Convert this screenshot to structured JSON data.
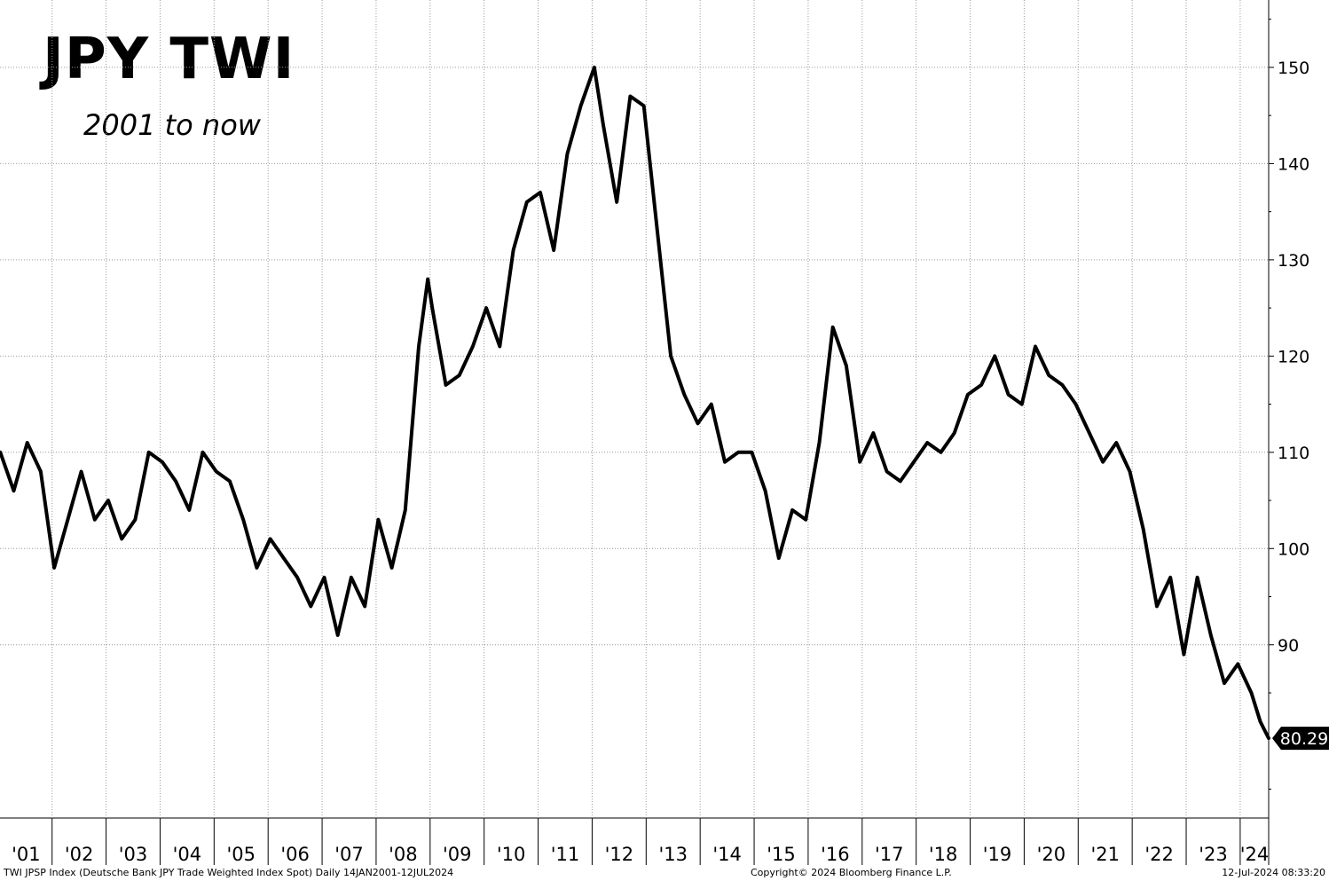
{
  "title": "JPY TWI",
  "subtitle": "2001 to now",
  "footer": {
    "source": "TWI JPSP Index (Deutsche Bank JPY Trade Weighted Index Spot)  Daily 14JAN2001-12JUL2024",
    "copyright": "Copyright© 2024 Bloomberg Finance L.P.",
    "timestamp": "12-Jul-2024 08:33:20"
  },
  "chart_data": {
    "type": "line",
    "title": "JPY TWI",
    "subtitle": "2001 to now",
    "frequency": "Daily",
    "date_range": "14JAN2001-12JUL2024",
    "ylim": [
      72,
      157
    ],
    "y_ticks": [
      90,
      100,
      110,
      120,
      130,
      140,
      150
    ],
    "y_tick_labels": [
      "90",
      "100",
      "110",
      "120",
      "130",
      "140",
      "150"
    ],
    "y_axis_position": "right",
    "x_tick_labels": [
      "'01",
      "'02",
      "'03",
      "'04",
      "'05",
      "'06",
      "'07",
      "'08",
      "'09",
      "'10",
      "'11",
      "'12",
      "'13",
      "'14",
      "'15",
      "'16",
      "'17",
      "'18",
      "'19",
      "'20",
      "'21",
      "'22",
      "'23",
      "'24"
    ],
    "grid": true,
    "last_value": 80.29,
    "last_value_label": "80.29",
    "line_color": "#000000",
    "series": [
      {
        "x": [
          "2001-01",
          "2001-04",
          "2001-07",
          "2001-10",
          "2002-01",
          "2002-04",
          "2002-07",
          "2002-10",
          "2003-01",
          "2003-04",
          "2003-07",
          "2003-10",
          "2004-01",
          "2004-04",
          "2004-07",
          "2004-10",
          "2005-01",
          "2005-04",
          "2005-07",
          "2005-10",
          "2006-01",
          "2006-04",
          "2006-07",
          "2006-10",
          "2007-01",
          "2007-04",
          "2007-07",
          "2007-10",
          "2008-01",
          "2008-04",
          "2008-07",
          "2008-10",
          "2008-12",
          "2009-01",
          "2009-04",
          "2009-07",
          "2009-10",
          "2010-01",
          "2010-04",
          "2010-07",
          "2010-10",
          "2011-01",
          "2011-04",
          "2011-07",
          "2011-10",
          "2012-01",
          "2012-03",
          "2012-06",
          "2012-09",
          "2012-12",
          "2013-03",
          "2013-06",
          "2013-09",
          "2013-12",
          "2014-03",
          "2014-06",
          "2014-09",
          "2014-12",
          "2015-03",
          "2015-06",
          "2015-09",
          "2015-12",
          "2016-03",
          "2016-06",
          "2016-09",
          "2016-12",
          "2017-03",
          "2017-06",
          "2017-09",
          "2017-12",
          "2018-03",
          "2018-06",
          "2018-09",
          "2018-12",
          "2019-03",
          "2019-06",
          "2019-09",
          "2019-12",
          "2020-03",
          "2020-06",
          "2020-09",
          "2020-12",
          "2021-03",
          "2021-06",
          "2021-09",
          "2021-12",
          "2022-03",
          "2022-06",
          "2022-09",
          "2022-12",
          "2023-03",
          "2023-06",
          "2023-09",
          "2023-12",
          "2024-03",
          "2024-05",
          "2024-07"
        ],
        "values": [
          110,
          106,
          111,
          108,
          98,
          103,
          108,
          103,
          105,
          101,
          103,
          110,
          109,
          107,
          104,
          110,
          108,
          107,
          103,
          98,
          101,
          99,
          97,
          94,
          97,
          91,
          97,
          94,
          103,
          98,
          104,
          121,
          128,
          125,
          117,
          118,
          121,
          125,
          121,
          131,
          136,
          137,
          131,
          141,
          146,
          150,
          144,
          136,
          147,
          146,
          133,
          120,
          116,
          113,
          115,
          109,
          110,
          110,
          106,
          99,
          104,
          103,
          111,
          123,
          119,
          109,
          112,
          108,
          107,
          109,
          111,
          110,
          112,
          116,
          117,
          120,
          116,
          115,
          121,
          118,
          117,
          115,
          112,
          109,
          111,
          108,
          102,
          94,
          97,
          89,
          97,
          91,
          86,
          88,
          85,
          82,
          80.29
        ]
      }
    ]
  }
}
